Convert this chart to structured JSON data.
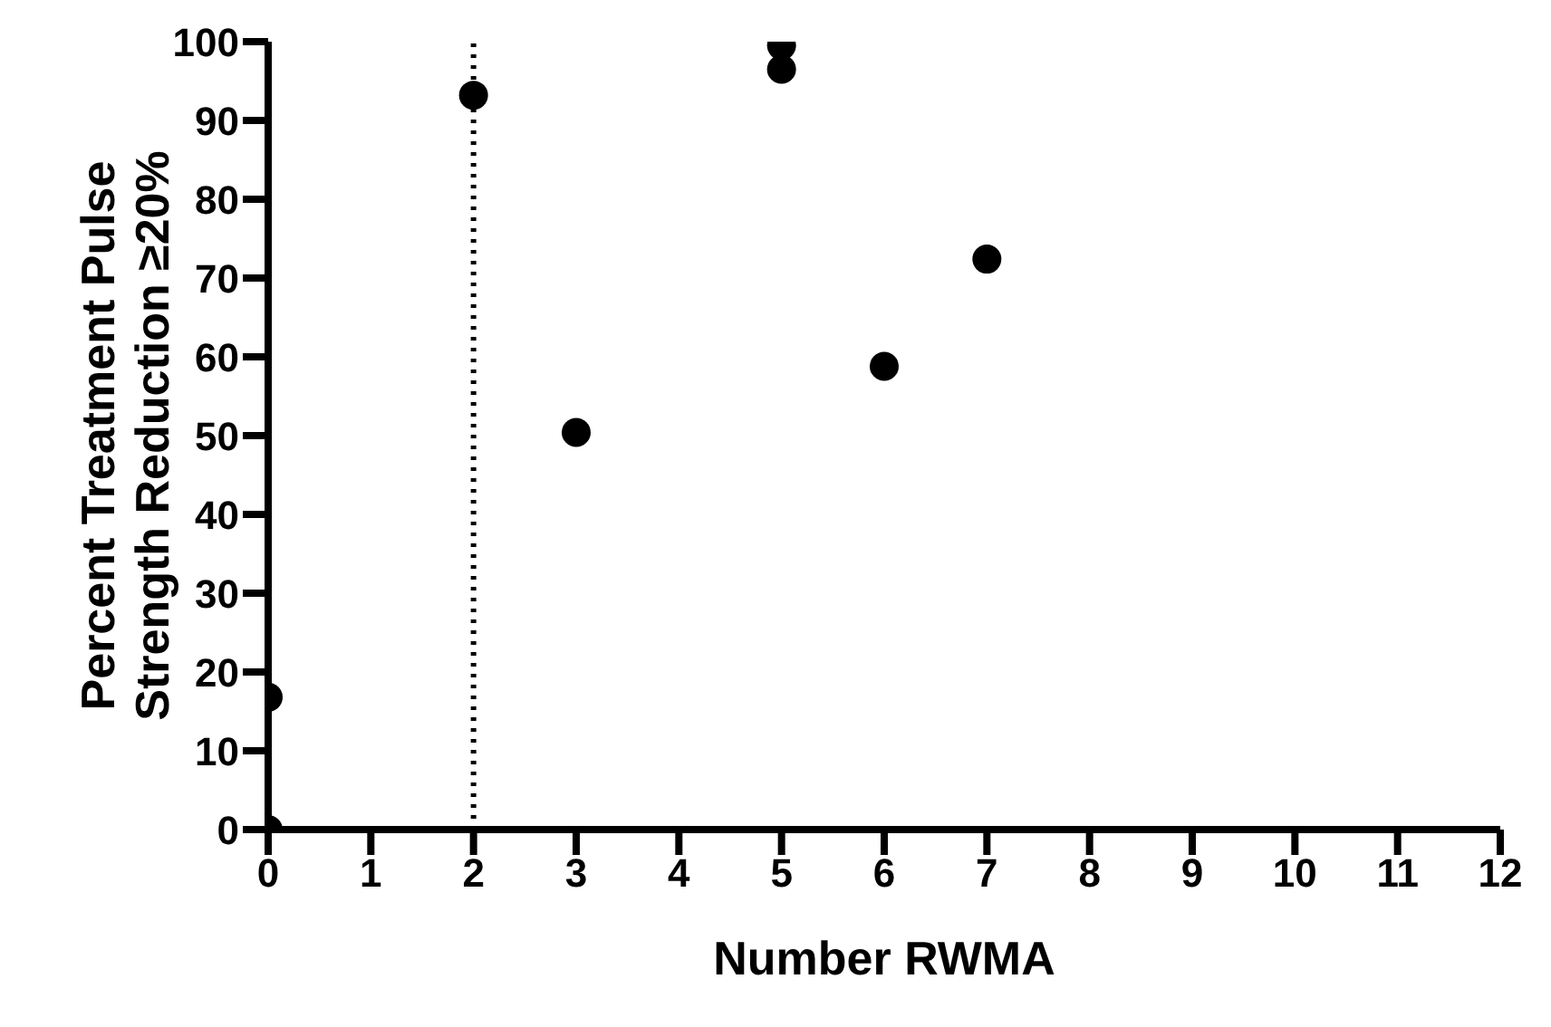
{
  "chart_data": {
    "type": "scatter",
    "xlabel": "Number RWMA",
    "ylabel": "Percent Treatment Pulse\nStrength Reduction ≥20%",
    "x": [
      0,
      0,
      2,
      3,
      5,
      5,
      6,
      7
    ],
    "values": [
      0,
      16.8,
      93.2,
      50.4,
      99.5,
      96.5,
      58.8,
      72.4
    ],
    "color": "#000000",
    "marker": "circle",
    "xlim": [
      0,
      12
    ],
    "xticks": [
      0,
      1,
      2,
      3,
      4,
      5,
      6,
      7,
      8,
      9,
      10,
      11,
      12
    ],
    "ylim": [
      0,
      100
    ],
    "yticks": [
      0,
      10,
      20,
      30,
      40,
      50,
      60,
      70,
      80,
      90,
      100
    ],
    "grid": false,
    "legend": false,
    "ref_lines": [
      {
        "axis": "x",
        "value": 2,
        "line_style": "dotted",
        "color": "#000000"
      }
    ]
  }
}
